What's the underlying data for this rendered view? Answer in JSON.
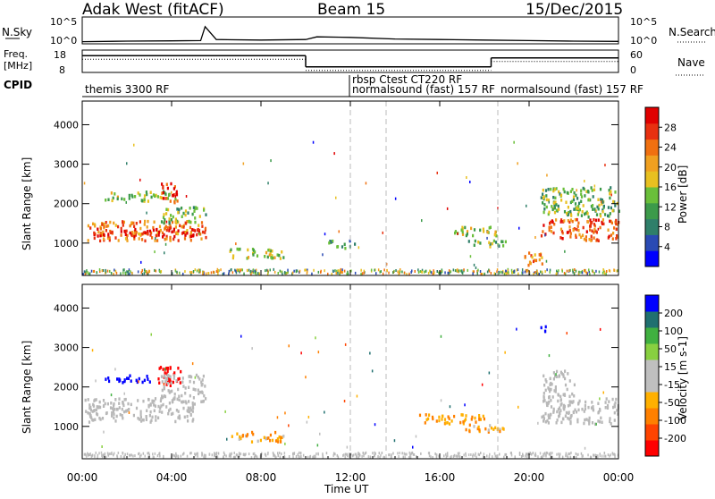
{
  "header": {
    "station": "Adak West (fitACF)",
    "beam": "Beam 15",
    "date": "15/Dec/2015"
  },
  "nsky_panel": {
    "left_label": "N.Sky",
    "left_ticks": [
      "10^5",
      "10^0"
    ],
    "right_ticks": [
      "10^5",
      "10^0"
    ],
    "right_label": "N.Search"
  },
  "freq_panel": {
    "left_label_line1": "Freq.",
    "left_label_line2": "[MHz]",
    "left_ticks": [
      "18",
      "8"
    ],
    "right_ticks": [
      "60",
      "0"
    ],
    "right_label": "Nave"
  },
  "cpid": {
    "label": "CPID",
    "segments": [
      {
        "text": "themis 3300 RF",
        "start_hour": 0
      },
      {
        "text": "rbsp  Ctest CT220 RF",
        "start_hour": 11.9
      },
      {
        "text": "normalsound (fast) 157 RF",
        "start_hour": 11.9
      },
      {
        "text": "normalsound (fast) 157 RF",
        "start_hour": 18.4
      }
    ]
  },
  "x_axis": {
    "label": "Time UT",
    "ticks": [
      "00:00",
      "04:00",
      "08:00",
      "12:00",
      "16:00",
      "20:00",
      "00:00"
    ],
    "tick_hours": [
      0,
      4,
      8,
      12,
      16,
      20,
      24
    ]
  },
  "power_panel": {
    "ylabel": "Slant Range [km]",
    "yticks": [
      "4000",
      "3000",
      "2000",
      "1000"
    ],
    "colorbar_label": "Power [dB]",
    "colorbar_ticks": [
      "28",
      "24",
      "20",
      "16",
      "12",
      "8",
      "4"
    ]
  },
  "velocity_panel": {
    "ylabel": "Slant Range [km]",
    "yticks": [
      "4000",
      "3000",
      "2000",
      "1000"
    ],
    "colorbar_label": "Velocity [m s-1]",
    "colorbar_ticks": [
      "200",
      "100",
      "50",
      "15",
      "-15",
      "-50",
      "-100",
      "-200"
    ]
  },
  "colors": {
    "power_scale": [
      "#0000ff",
      "#2a4ab4",
      "#2f7f6a",
      "#3c9a4a",
      "#6abf3a",
      "#e8c020",
      "#f0a020",
      "#f07010",
      "#e83010",
      "#e00000"
    ],
    "velocity_scale": [
      "#ff0000",
      "#ff4400",
      "#ff8000",
      "#ffb000",
      "#bfbfbf",
      "#bfbfbf",
      "#88d040",
      "#40b040",
      "#207070",
      "#0000ff"
    ],
    "ground_scatter": "#b8b8b8"
  },
  "chart_data": [
    {
      "type": "line",
      "panel": "N.Sky",
      "xlabel": "",
      "ylabel": "N.Sky",
      "yscale": "log",
      "ylim_exponent": [
        0,
        5
      ],
      "x_hours": [
        0,
        2,
        4,
        5.3,
        5.5,
        6,
        8,
        10,
        10.5,
        12,
        14,
        16,
        18,
        20,
        22,
        24
      ],
      "values_exp": [
        0.4,
        0.5,
        0.55,
        0.6,
        3.2,
        0.8,
        0.7,
        0.8,
        1.3,
        1.2,
        0.9,
        0.8,
        0.7,
        0.6,
        0.5,
        0.45
      ]
    },
    {
      "type": "line",
      "panel": "Freq",
      "ylabel": "Freq. [MHz]",
      "ylim": [
        8,
        18
      ],
      "segments": [
        {
          "x_start": 0,
          "x_end": 10.0,
          "freq_mhz": 15.5
        },
        {
          "x_start": 10.0,
          "x_end": 18.3,
          "freq_mhz": 10.5
        },
        {
          "x_start": 18.3,
          "x_end": 24,
          "freq_mhz": 14.5
        }
      ]
    },
    {
      "type": "heatmap",
      "panel": "Power",
      "ylabel": "Slant Range [km]",
      "ylim": [
        180,
        4600
      ],
      "xlim": [
        0,
        24
      ],
      "cbar_range": [
        0,
        30
      ],
      "blobs": [
        {
          "t0": 0.2,
          "t1": 5.5,
          "r0": 1050,
          "r1": 1550,
          "value": 22
        },
        {
          "t0": 0.4,
          "t1": 5.5,
          "r0": 1150,
          "r1": 1350,
          "value": 28
        },
        {
          "t0": 1.0,
          "t1": 4.2,
          "r0": 2050,
          "r1": 2300,
          "value": 14
        },
        {
          "t0": 3.5,
          "t1": 4.3,
          "r0": 2000,
          "r1": 2500,
          "value": 26
        },
        {
          "t0": 3.5,
          "t1": 5.5,
          "r0": 1500,
          "r1": 1900,
          "value": 12
        },
        {
          "t0": 6.5,
          "t1": 9.0,
          "r0": 600,
          "r1": 850,
          "value": 14
        },
        {
          "t0": 11.0,
          "t1": 12.2,
          "r0": 850,
          "r1": 1050,
          "value": 10
        },
        {
          "t0": 16.5,
          "t1": 18.5,
          "r0": 1150,
          "r1": 1400,
          "value": 14
        },
        {
          "t0": 17.0,
          "t1": 19.0,
          "r0": 900,
          "r1": 1050,
          "value": 12
        },
        {
          "t0": 19.7,
          "t1": 20.6,
          "r0": 400,
          "r1": 750,
          "value": 22
        },
        {
          "t0": 20.5,
          "t1": 24.0,
          "r0": 1050,
          "r1": 1600,
          "value": 24
        },
        {
          "t0": 20.5,
          "t1": 24.0,
          "r0": 1650,
          "r1": 2400,
          "value": 12
        }
      ]
    },
    {
      "type": "heatmap",
      "panel": "Velocity",
      "ylabel": "Slant Range [km]",
      "ylim": [
        180,
        4600
      ],
      "xlim": [
        0,
        24
      ],
      "cbar_range": [
        -200,
        200
      ],
      "blobs": [
        {
          "t0": 0.1,
          "t1": 5.0,
          "r0": 1100,
          "r1": 1700,
          "value": 0
        },
        {
          "t0": 1.0,
          "t1": 3.0,
          "r0": 2100,
          "r1": 2300,
          "value": 200
        },
        {
          "t0": 3.3,
          "t1": 4.4,
          "r0": 2000,
          "r1": 2500,
          "value": -200
        },
        {
          "t0": 3.5,
          "t1": 5.5,
          "r0": 1600,
          "r1": 2300,
          "value": 0
        },
        {
          "t0": 6.5,
          "t1": 9.0,
          "r0": 600,
          "r1": 850,
          "value": -60
        },
        {
          "t0": 15.0,
          "t1": 18.0,
          "r0": 1050,
          "r1": 1300,
          "value": -80
        },
        {
          "t0": 17.0,
          "t1": 19.0,
          "r0": 850,
          "r1": 1050,
          "value": -70
        },
        {
          "t0": 20.5,
          "t1": 24.0,
          "r0": 1050,
          "r1": 1700,
          "value": 0
        },
        {
          "t0": 20.6,
          "t1": 22.0,
          "r0": 1700,
          "r1": 2400,
          "value": 0
        },
        {
          "t0": 20.4,
          "t1": 20.8,
          "r0": 3350,
          "r1": 3550,
          "value": 200
        }
      ]
    }
  ]
}
